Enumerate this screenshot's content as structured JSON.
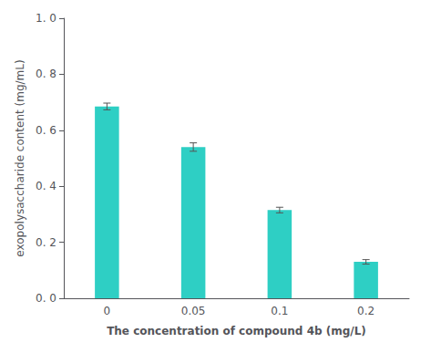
{
  "chart_data": {
    "type": "bar",
    "categories": [
      "0",
      "0.05",
      "0.1",
      "0.2"
    ],
    "values": [
      0.685,
      0.54,
      0.315,
      0.13
    ],
    "errors": [
      0.012,
      0.015,
      0.01,
      0.008
    ],
    "color": "#2ECFC4",
    "xlabel": "The concentration of compound 4b (mg/L)",
    "ylabel": "exopolysaccharide content (mg/mL)",
    "ylim": [
      0.0,
      1.0
    ],
    "yticks": [
      {
        "value": 0.0,
        "label": "0. 0"
      },
      {
        "value": 0.2,
        "label": "0. 2"
      },
      {
        "value": 0.4,
        "label": "0. 4"
      },
      {
        "value": 0.6,
        "label": "0. 6"
      },
      {
        "value": 0.8,
        "label": "0. 8"
      },
      {
        "value": 1.0,
        "label": "1. 0"
      }
    ],
    "grid": false
  }
}
